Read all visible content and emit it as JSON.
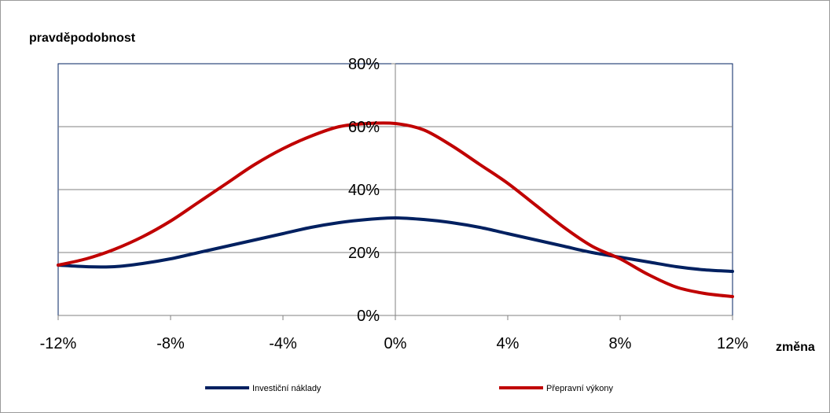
{
  "chart_data": {
    "type": "line",
    "title": "",
    "ylabel": "pravděpodobnost",
    "xlabel": "změna",
    "xlim": [
      -12,
      12
    ],
    "ylim": [
      0,
      80
    ],
    "x_ticks": [
      -12,
      -8,
      -4,
      0,
      4,
      8,
      12
    ],
    "y_ticks": [
      0,
      20,
      40,
      60,
      80
    ],
    "x_tick_labels": [
      "-12%",
      "-8%",
      "-4%",
      "0%",
      "4%",
      "8%",
      "12%"
    ],
    "y_tick_labels": [
      "0%",
      "20%",
      "40%",
      "60%",
      "80%"
    ],
    "grid": "horizontal major gridlines",
    "legend_position": "bottom",
    "series": [
      {
        "name": "Investiční náklady",
        "color": "#002060",
        "x": [
          -12,
          -11,
          -10,
          -9,
          -8,
          -7,
          -6,
          -5,
          -4,
          -3,
          -2,
          -1,
          0,
          1,
          2,
          3,
          4,
          5,
          6,
          7,
          8,
          9,
          10,
          11,
          12
        ],
        "y": [
          16,
          15.5,
          15.5,
          16.5,
          18,
          20,
          22,
          24,
          26,
          28,
          29.5,
          30.5,
          31,
          30.5,
          29.5,
          28,
          26,
          24,
          22,
          20,
          18.5,
          17,
          15.5,
          14.5,
          14
        ]
      },
      {
        "name": "Přepravní výkony",
        "color": "#C00000",
        "x": [
          -12,
          -11,
          -10,
          -9,
          -8,
          -7,
          -6,
          -5,
          -4,
          -3,
          -2,
          -1,
          0,
          1,
          2,
          3,
          4,
          5,
          6,
          7,
          8,
          9,
          10,
          11,
          12
        ],
        "y": [
          16,
          18,
          21,
          25,
          30,
          36,
          42,
          48,
          53,
          57,
          60,
          61,
          61,
          59,
          54,
          48,
          42,
          35,
          28,
          22,
          18,
          13,
          9,
          7,
          6
        ]
      }
    ]
  }
}
